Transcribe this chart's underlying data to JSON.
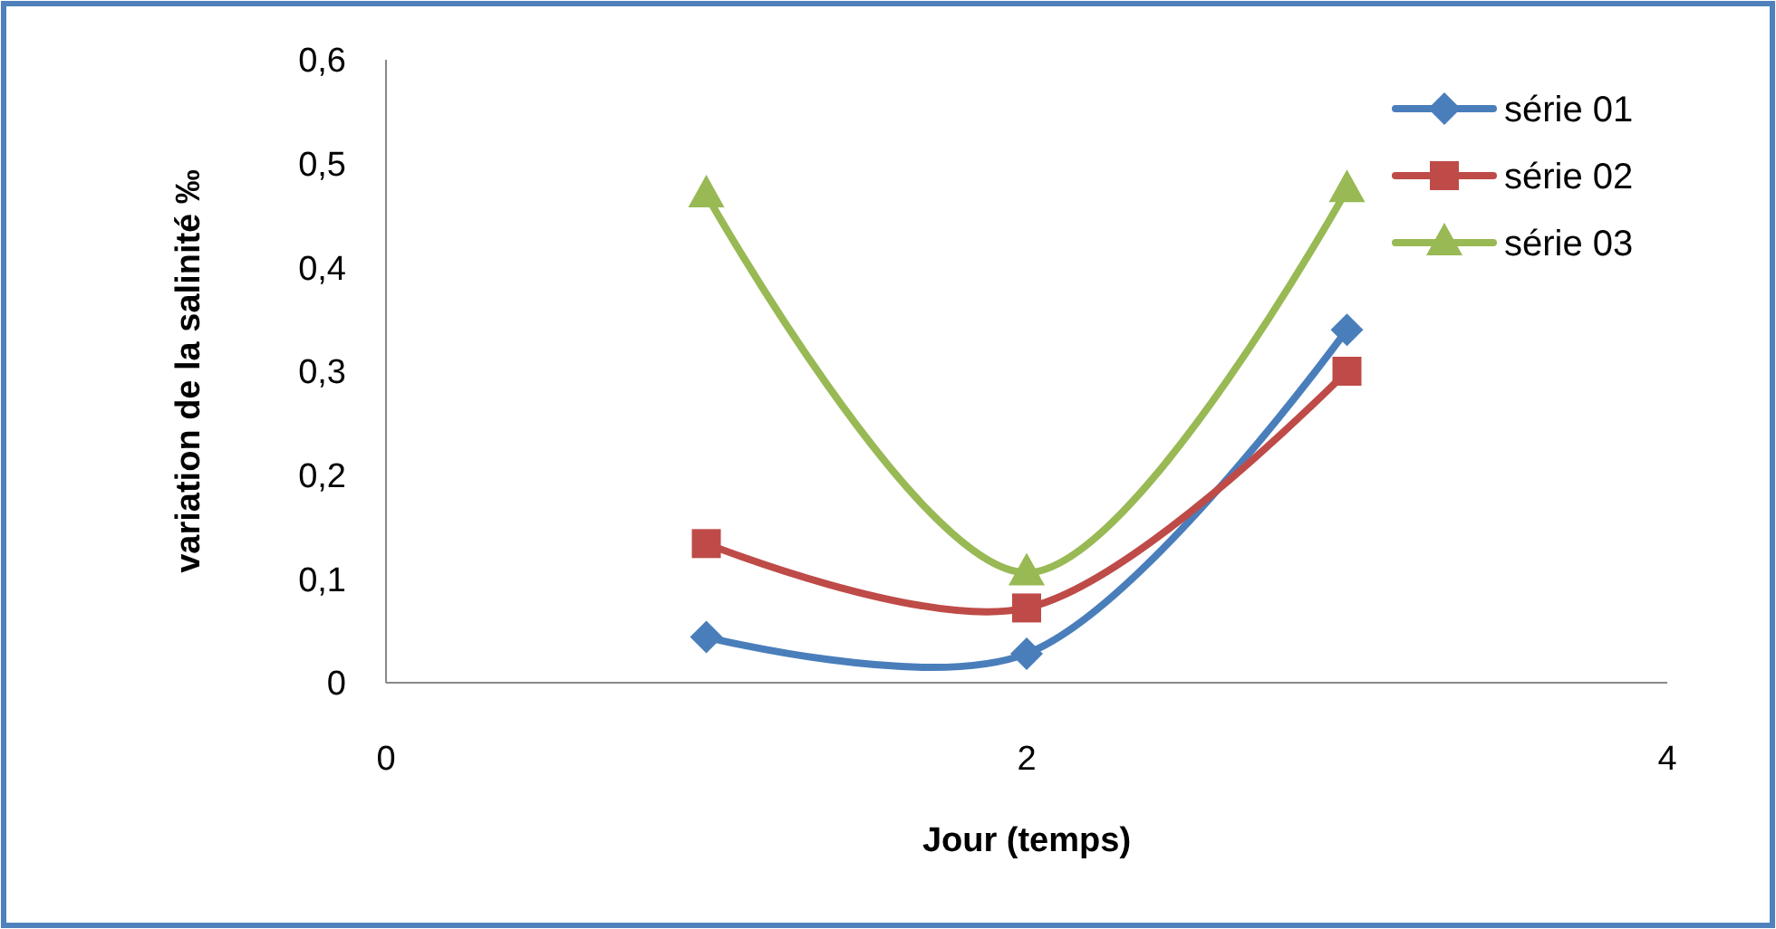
{
  "chart_data": {
    "type": "line",
    "xlabel": "Jour (temps)",
    "ylabel": "variation de la salinité ‰",
    "xlim": [
      0,
      4
    ],
    "xticks": [
      0,
      2,
      4
    ],
    "ylim": [
      0,
      0.6
    ],
    "yticks": [
      {
        "value": 0,
        "label": "0"
      },
      {
        "value": 0.1,
        "label": "0,1"
      },
      {
        "value": 0.2,
        "label": "0,2"
      },
      {
        "value": 0.3,
        "label": "0,3"
      },
      {
        "value": 0.4,
        "label": "0,4"
      },
      {
        "value": 0.5,
        "label": "0,5"
      },
      {
        "value": 0.6,
        "label": "0,6"
      }
    ],
    "x": [
      1,
      2,
      3
    ],
    "legend": "top right",
    "grid": false,
    "series": [
      {
        "name": "série 01",
        "color": "#4a7ebb",
        "marker": "diamond",
        "values": [
          0.044,
          0.028,
          0.34
        ]
      },
      {
        "name": "série 02",
        "color": "#be4b48",
        "marker": "square",
        "values": [
          0.134,
          0.072,
          0.3
        ]
      },
      {
        "name": "série 03",
        "color": "#98b954",
        "marker": "triangle",
        "values": [
          0.47,
          0.106,
          0.475
        ]
      }
    ]
  }
}
